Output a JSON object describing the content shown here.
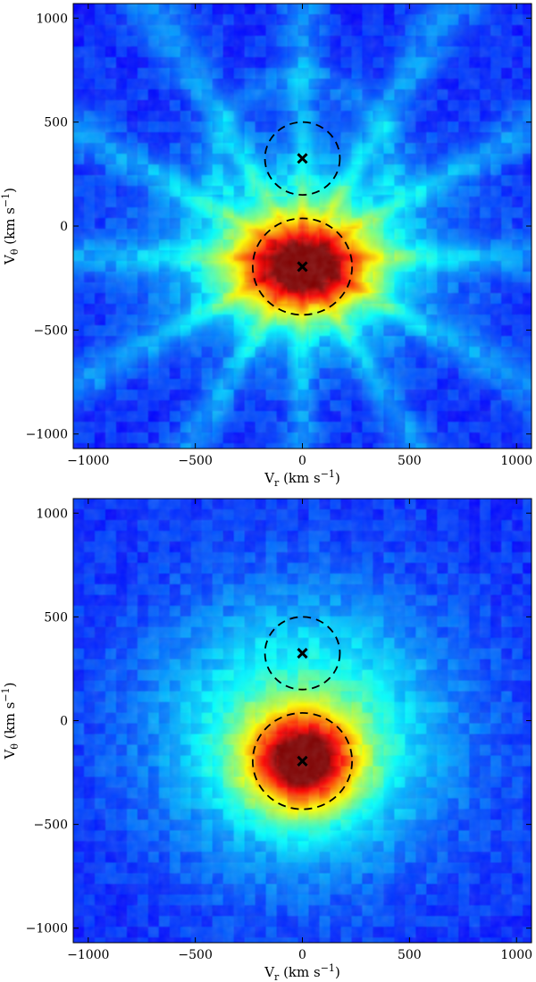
{
  "chart_data": [
    {
      "type": "heatmap",
      "xlabel": "V",
      "xlabel_sub": "r",
      "xlabel_unit": " (km s",
      "xlabel_unit_exp": "−1",
      "xlabel_unit_close": ")",
      "ylabel": "V",
      "ylabel_sub": "θ",
      "ylabel_unit": " (km s",
      "ylabel_unit_exp": "−1",
      "ylabel_unit_close": ")",
      "xlim": [
        -1070,
        1070
      ],
      "ylim": [
        -1070,
        1070
      ],
      "xticks": [
        -1000,
        -500,
        0,
        500,
        1000
      ],
      "xtick_labels": [
        "−1000",
        "−500",
        "0",
        "500",
        "1000"
      ],
      "yticks": [
        -1000,
        -500,
        0,
        500,
        1000
      ],
      "ytick_labels": [
        "−1000",
        "−500",
        "0",
        "500",
        "1000"
      ],
      "colormap": "jet",
      "peak": {
        "vr": 0,
        "vtheta": -200,
        "width_vr": 210,
        "width_vtheta": 150
      },
      "halo": {
        "vr": 0,
        "vtheta": -120,
        "width_vr": 430,
        "width_vtheta": 330
      },
      "streaks": true,
      "markers": [
        {
          "symbol": "x",
          "vr": 0,
          "vtheta": 325
        },
        {
          "symbol": "x",
          "vr": 0,
          "vtheta": -195
        }
      ],
      "circles": [
        {
          "center_vr": 0,
          "center_vtheta": 325,
          "radius": 175,
          "style": "dashed"
        },
        {
          "center_vr": 0,
          "center_vtheta": -195,
          "radius": 232,
          "style": "dashed"
        }
      ]
    },
    {
      "type": "heatmap",
      "xlabel": "V",
      "xlabel_sub": "r",
      "xlabel_unit": " (km s",
      "xlabel_unit_exp": "−1",
      "xlabel_unit_close": ")",
      "ylabel": "V",
      "ylabel_sub": "θ",
      "ylabel_unit": " (km s",
      "ylabel_unit_exp": "−1",
      "ylabel_unit_close": ")",
      "xlim": [
        -1070,
        1070
      ],
      "ylim": [
        -1070,
        1070
      ],
      "xticks": [
        -1000,
        -500,
        0,
        500,
        1000
      ],
      "xtick_labels": [
        "−1000",
        "−500",
        "0",
        "500",
        "1000"
      ],
      "yticks": [
        -1000,
        -500,
        0,
        500,
        1000
      ],
      "ytick_labels": [
        "−1000",
        "−500",
        "0",
        "500",
        "1000"
      ],
      "colormap": "jet",
      "peak": {
        "vr": 0,
        "vtheta": -195,
        "width_vr": 180,
        "width_vtheta": 160
      },
      "halo": {
        "vr": 0,
        "vtheta": -60,
        "width_vr": 470,
        "width_vtheta": 450
      },
      "streaks": false,
      "markers": [
        {
          "symbol": "x",
          "vr": 0,
          "vtheta": 325
        },
        {
          "symbol": "x",
          "vr": 0,
          "vtheta": -195
        }
      ],
      "circles": [
        {
          "center_vr": 0,
          "center_vtheta": 325,
          "radius": 175,
          "style": "dashed"
        },
        {
          "center_vr": 0,
          "center_vtheta": -195,
          "radius": 232,
          "style": "dashed"
        }
      ]
    }
  ]
}
